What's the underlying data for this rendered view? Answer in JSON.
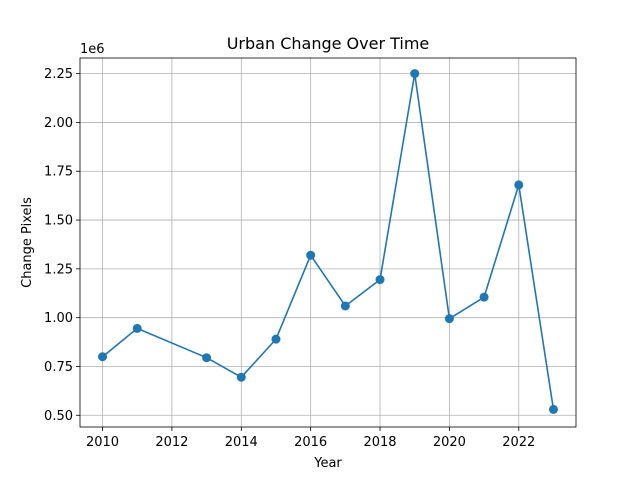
{
  "chart_data": {
    "type": "line",
    "title": "Urban Change Over Time",
    "xlabel": "Year",
    "ylabel": "Change Pixels",
    "y_offset_label": "1e6",
    "grid": true,
    "xlim": [
      2009.35,
      2023.65
    ],
    "ylim": [
      0.44,
      2.33
    ],
    "x_ticks": [
      2010,
      2012,
      2014,
      2016,
      2018,
      2020,
      2022
    ],
    "x_tick_labels": [
      "2010",
      "2012",
      "2014",
      "2016",
      "2018",
      "2020",
      "2022"
    ],
    "y_ticks": [
      0.5,
      0.75,
      1.0,
      1.25,
      1.5,
      1.75,
      2.0,
      2.25
    ],
    "y_tick_labels": [
      "0.50",
      "0.75",
      "1.00",
      "1.25",
      "1.50",
      "1.75",
      "2.00",
      "2.25"
    ],
    "series": [
      {
        "color": "#1f77b4",
        "marker": "circle",
        "x": [
          2010,
          2011,
          2013,
          2014,
          2015,
          2016,
          2017,
          2018,
          2019,
          2020,
          2021,
          2022,
          2023
        ],
        "y": [
          0.8,
          0.945,
          0.795,
          0.695,
          0.89,
          1.32,
          1.06,
          1.195,
          2.25,
          0.995,
          1.105,
          1.68,
          0.53
        ]
      }
    ]
  }
}
